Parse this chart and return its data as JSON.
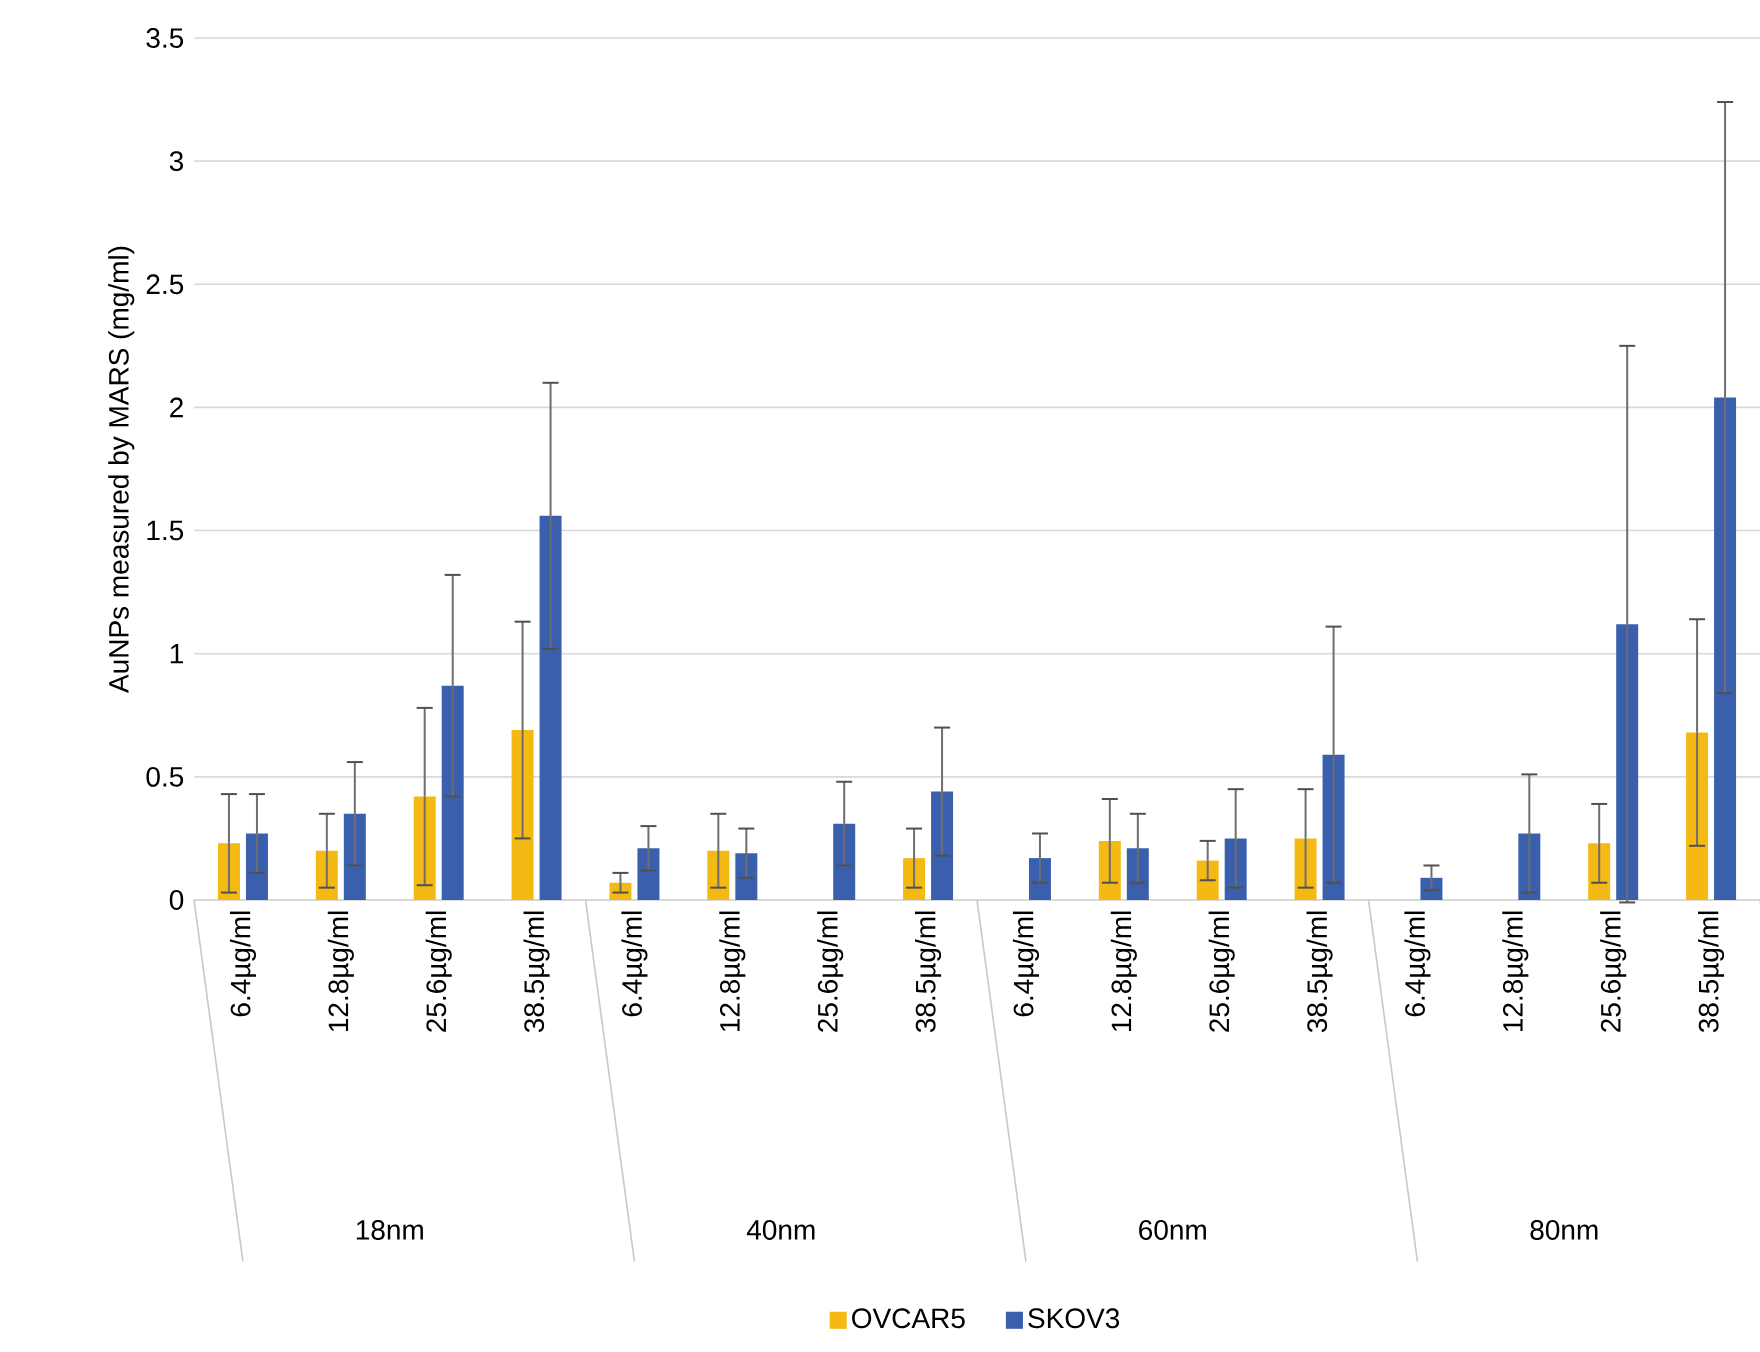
{
  "chart_data": {
    "type": "bar",
    "ylabel": "AuNPs measured by MARS (mg/ml)",
    "categories": [
      "6.4µg/ml",
      "12.8µg/ml",
      "25.6µg/ml",
      "38.5µg/ml",
      "6.4µg/ml",
      "12.8µg/ml",
      "25.6µg/ml",
      "38.5µg/ml",
      "6.4µg/ml",
      "12.8µg/ml",
      "25.6µg/ml",
      "38.5µg/ml",
      "6.4µg/ml",
      "12.8µg/ml",
      "25.6µg/ml",
      "38.5µg/ml"
    ],
    "annotations": [
      "18nm",
      "40nm",
      "60nm",
      "80nm"
    ],
    "series": [
      {
        "name": "OVCAR5",
        "color": "#f5b914",
        "values": [
          0.23,
          0.2,
          0.42,
          0.69,
          0.07,
          0.2,
          null,
          0.17,
          null,
          0.24,
          0.16,
          0.25,
          null,
          null,
          0.23,
          0.68
        ],
        "errors": [
          0.2,
          0.15,
          0.36,
          0.44,
          0.04,
          0.15,
          null,
          0.12,
          null,
          0.17,
          0.08,
          0.2,
          null,
          null,
          0.16,
          0.46
        ]
      },
      {
        "name": "SKOV3",
        "color": "#3a60ad",
        "values": [
          0.27,
          0.35,
          0.87,
          1.56,
          0.21,
          0.19,
          0.31,
          0.44,
          0.17,
          0.21,
          0.25,
          0.59,
          0.09,
          0.27,
          1.12,
          2.04
        ],
        "errors": [
          0.16,
          0.21,
          0.45,
          0.54,
          0.09,
          0.1,
          0.17,
          0.26,
          0.1,
          0.14,
          0.2,
          0.52,
          0.05,
          0.24,
          1.13,
          1.2
        ]
      }
    ],
    "ylim": [
      0,
      3.5
    ],
    "yticks": [
      0,
      0.5,
      1,
      1.5,
      2,
      2.5,
      3,
      3.5
    ],
    "grid": "y",
    "legend": "bottom"
  }
}
